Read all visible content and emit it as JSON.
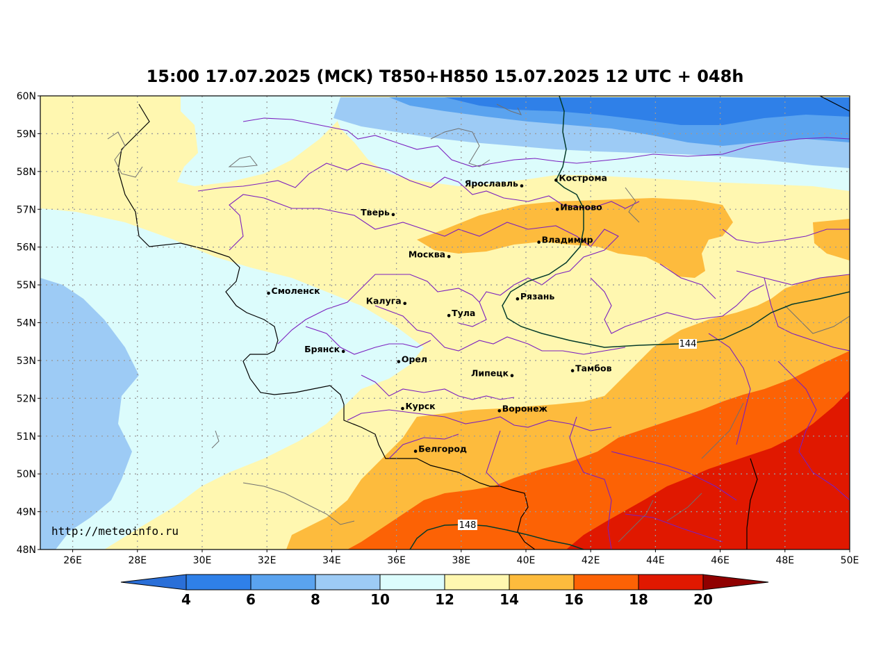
{
  "title": "15:00 17.07.2025 (MCK) T850+H850 15.07.2025 12 UTC + 048h",
  "watermark": "http://meteoinfo.ru",
  "lat_labels": [
    "60N",
    "59N",
    "58N",
    "57N",
    "56N",
    "55N",
    "54N",
    "53N",
    "52N",
    "51N",
    "50N",
    "49N",
    "48N"
  ],
  "lon_labels": [
    "26E",
    "28E",
    "30E",
    "32E",
    "34E",
    "36E",
    "38E",
    "40E",
    "42E",
    "44E",
    "46E",
    "48E",
    "50E"
  ],
  "colorbar": {
    "labels": [
      "4",
      "6",
      "8",
      "10",
      "12",
      "14",
      "16",
      "18",
      "20"
    ],
    "colors": [
      "#2a6fd8",
      "#2f80e8",
      "#5aa3ef",
      "#9dcbf5",
      "#dcfcfc",
      "#fff7b0",
      "#fdbb3d",
      "#fc6205",
      "#e01800",
      "#900000"
    ]
  },
  "contours": [
    "144",
    "148"
  ],
  "cities": [
    {
      "name": "Кострома",
      "lat": 57.77,
      "lon": 40.93
    },
    {
      "name": "Ярославль",
      "lat": 57.62,
      "lon": 39.87
    },
    {
      "name": "Иваново",
      "lat": 57.0,
      "lon": 40.97
    },
    {
      "name": "Тверь",
      "lat": 56.86,
      "lon": 35.9
    },
    {
      "name": "Владимир",
      "lat": 56.13,
      "lon": 40.4
    },
    {
      "name": "Москва",
      "lat": 55.75,
      "lon": 37.62
    },
    {
      "name": "Смоленск",
      "lat": 54.78,
      "lon": 32.05
    },
    {
      "name": "Калуга",
      "lat": 54.51,
      "lon": 36.26
    },
    {
      "name": "Рязань",
      "lat": 54.63,
      "lon": 39.74
    },
    {
      "name": "Тула",
      "lat": 54.19,
      "lon": 37.62
    },
    {
      "name": "Брянск",
      "lat": 53.24,
      "lon": 34.36
    },
    {
      "name": "Орел",
      "lat": 52.97,
      "lon": 36.07
    },
    {
      "name": "Тамбов",
      "lat": 52.73,
      "lon": 41.44
    },
    {
      "name": "Липецк",
      "lat": 52.6,
      "lon": 39.57
    },
    {
      "name": "Курск",
      "lat": 51.73,
      "lon": 36.19
    },
    {
      "name": "Воронеж",
      "lat": 51.67,
      "lon": 39.18
    },
    {
      "name": "Белгород",
      "lat": 50.6,
      "lon": 36.59
    }
  ]
}
